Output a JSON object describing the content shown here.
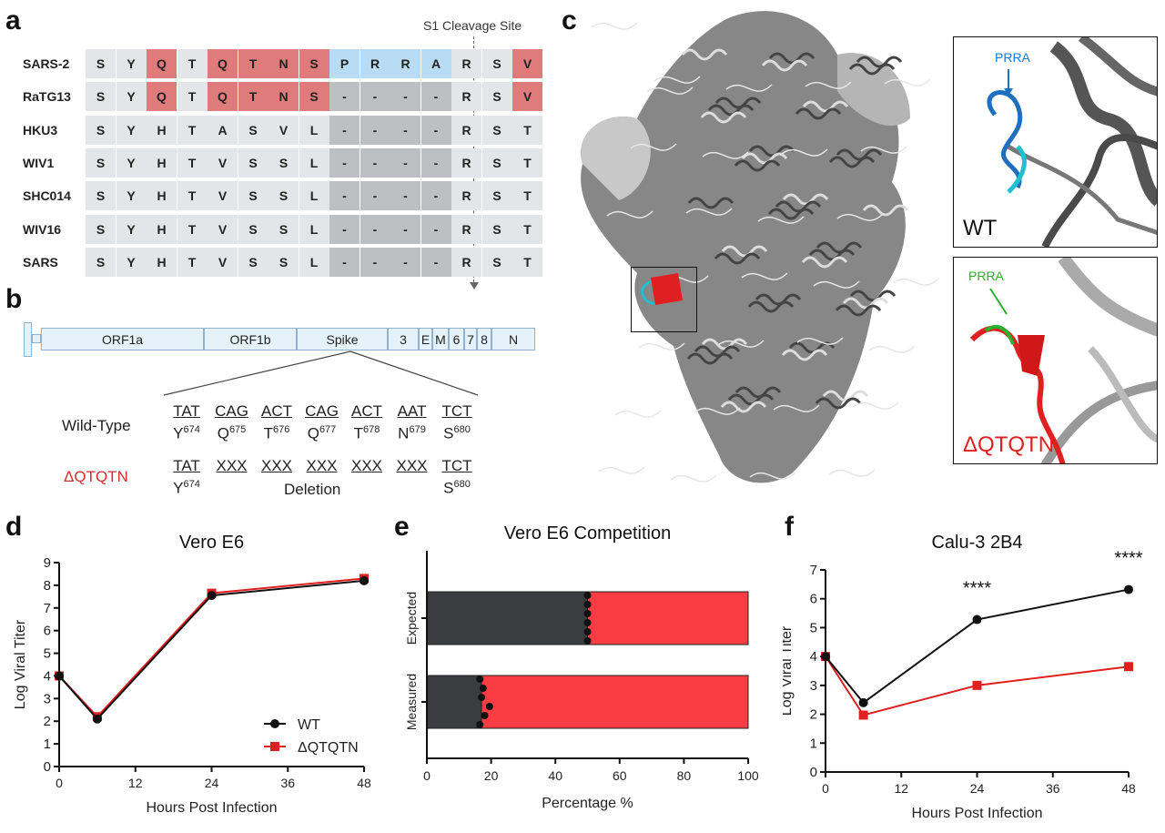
{
  "panel_labels": [
    "a",
    "b",
    "c",
    "d",
    "e",
    "f"
  ],
  "alignment": {
    "cleavage_label": "S1 Cleavage Site",
    "colors": {
      "base": "#e4e5e8",
      "mutation": "#e07b7b",
      "insert": "#b7dcf4",
      "gap": "#bebfc2"
    },
    "rows": [
      {
        "name": "SARS-2",
        "residues": [
          "S",
          "Y",
          "Q",
          "T",
          "Q",
          "T",
          "N",
          "S",
          "P",
          "R",
          "R",
          "A",
          "R",
          "S",
          "V"
        ]
      },
      {
        "name": "RaTG13",
        "residues": [
          "S",
          "Y",
          "Q",
          "T",
          "Q",
          "T",
          "N",
          "S",
          "-",
          "-",
          "-",
          "-",
          "R",
          "S",
          "V"
        ]
      },
      {
        "name": "HKU3",
        "residues": [
          "S",
          "Y",
          "H",
          "T",
          "A",
          "S",
          "V",
          "L",
          "-",
          "-",
          "-",
          "-",
          "R",
          "S",
          "T"
        ]
      },
      {
        "name": "WIV1",
        "residues": [
          "S",
          "Y",
          "H",
          "T",
          "V",
          "S",
          "S",
          "L",
          "-",
          "-",
          "-",
          "-",
          "R",
          "S",
          "T"
        ]
      },
      {
        "name": "SHC014",
        "residues": [
          "S",
          "Y",
          "H",
          "T",
          "V",
          "S",
          "S",
          "L",
          "-",
          "-",
          "-",
          "-",
          "R",
          "S",
          "T"
        ]
      },
      {
        "name": "WIV16",
        "residues": [
          "S",
          "Y",
          "H",
          "T",
          "V",
          "S",
          "S",
          "L",
          "-",
          "-",
          "-",
          "-",
          "R",
          "S",
          "T"
        ]
      },
      {
        "name": "SARS",
        "residues": [
          "S",
          "Y",
          "H",
          "T",
          "V",
          "S",
          "S",
          "L",
          "-",
          "-",
          "-",
          "-",
          "R",
          "S",
          "T"
        ]
      }
    ]
  },
  "genome": {
    "segments": [
      "ORF1a",
      "ORF1b",
      "Spike",
      "3",
      "E",
      "M",
      "6",
      "7",
      "8",
      "N"
    ],
    "wt_label": "Wild-Type",
    "mut_label": "ΔQTQTN",
    "wt_codons": [
      "TAT",
      "CAG",
      "ACT",
      "CAG",
      "ACT",
      "AAT",
      "TCT"
    ],
    "wt_aa": [
      {
        "aa": "Y",
        "pos": "674"
      },
      {
        "aa": "Q",
        "pos": "675"
      },
      {
        "aa": "T",
        "pos": "676"
      },
      {
        "aa": "Q",
        "pos": "677"
      },
      {
        "aa": "T",
        "pos": "678"
      },
      {
        "aa": "N",
        "pos": "679"
      },
      {
        "aa": "S",
        "pos": "680"
      }
    ],
    "mut_codons": [
      "TAT",
      "XXX",
      "XXX",
      "XXX",
      "XXX",
      "XXX",
      "TCT"
    ],
    "mut_aa_first": {
      "aa": "Y",
      "pos": "674"
    },
    "mut_aa_last": {
      "aa": "S",
      "pos": "680"
    },
    "deletion_label": "Deletion"
  },
  "structure": {
    "wt_inset_label": "WT",
    "wt_motif": "PRRA",
    "wt_color": "#1f77c9",
    "mut_inset_label": "ΔQTQTN",
    "mut_motif": "PRRA",
    "mut_color": "#e02020",
    "mut_motif_color": "#2ab02a"
  },
  "chart_data": [
    {
      "type": "line",
      "title": "Vero E6",
      "xlabel": "Hours Post Infection",
      "ylabel": "Log Viral Titer",
      "xlim": [
        0,
        48
      ],
      "ylim": [
        0,
        9
      ],
      "xticks": [
        0,
        12,
        24,
        36,
        48
      ],
      "yticks": [
        0,
        1,
        2,
        3,
        4,
        5,
        6,
        7,
        8,
        9
      ],
      "legend": "bottom-right",
      "series": [
        {
          "name": "WT",
          "color": "#111111",
          "marker": "circle",
          "x": [
            0,
            6,
            24,
            48
          ],
          "y": [
            4,
            2.1,
            7.55,
            8.2
          ]
        },
        {
          "name": "ΔQTQTN",
          "color": "#e02020",
          "marker": "square",
          "x": [
            0,
            6,
            24,
            48
          ],
          "y": [
            4,
            2.2,
            7.65,
            8.3
          ]
        }
      ]
    },
    {
      "type": "bar",
      "orientation": "horizontal",
      "stacked": true,
      "title": "Vero E6 Competition",
      "xlabel": "Percentage %",
      "xlim": [
        0,
        100
      ],
      "xticks": [
        0,
        20,
        40,
        60,
        80,
        100
      ],
      "categories": [
        "Expected",
        "Measured"
      ],
      "series": [
        {
          "color": "#3a3c3f",
          "values": [
            50,
            17
          ]
        },
        {
          "color": "#fb3d43",
          "values": [
            50,
            83
          ]
        }
      ],
      "points": [
        [
          50,
          50,
          50,
          50,
          50,
          50
        ],
        [
          16.5,
          17.5,
          17,
          19.5,
          18,
          16.5
        ]
      ]
    },
    {
      "type": "line",
      "title": "Calu-3 2B4",
      "xlabel": "Hours Post Infection",
      "ylabel": "Log Viral Titer",
      "xlim": [
        0,
        48
      ],
      "ylim": [
        0,
        7
      ],
      "xticks": [
        0,
        12,
        24,
        36,
        48
      ],
      "yticks": [
        0,
        1,
        2,
        3,
        4,
        5,
        6,
        7
      ],
      "annotations": [
        {
          "x": 24,
          "text": "****"
        },
        {
          "x": 48,
          "text": "****"
        }
      ],
      "series": [
        {
          "name": "WT",
          "color": "#111111",
          "marker": "circle",
          "x": [
            0,
            6,
            24,
            48
          ],
          "y": [
            4,
            2.4,
            5.28,
            6.32
          ]
        },
        {
          "name": "ΔQTQTN",
          "color": "#e02020",
          "marker": "square",
          "x": [
            0,
            6,
            24,
            48
          ],
          "y": [
            4,
            1.97,
            3.0,
            3.65
          ]
        }
      ]
    }
  ]
}
